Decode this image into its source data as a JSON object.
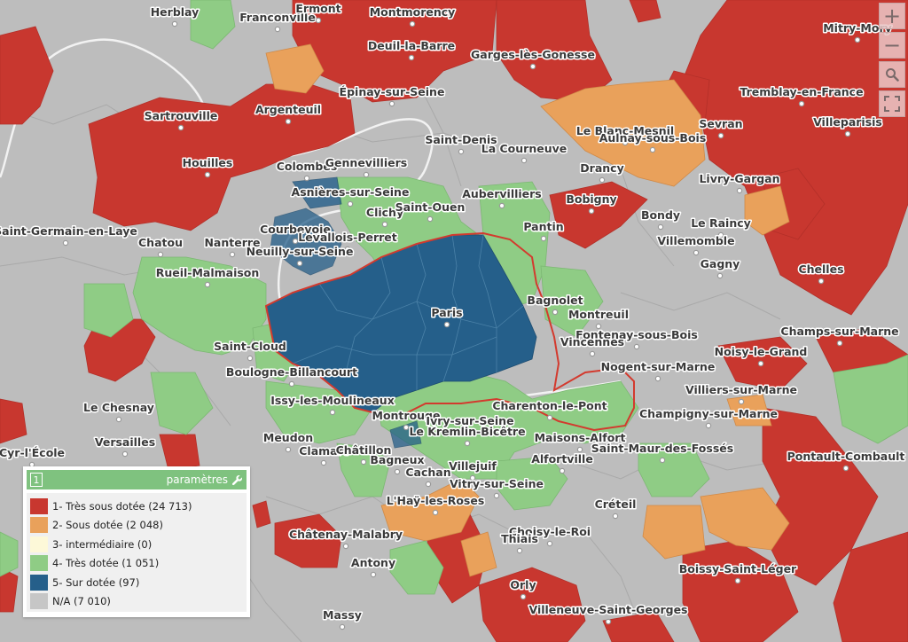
{
  "map": {
    "labels": [
      {
        "name": "Herblay"
      },
      {
        "name": "Franconville"
      },
      {
        "name": "Ermont"
      },
      {
        "name": "Montmorency"
      },
      {
        "name": "Mitry-Mory"
      },
      {
        "name": "Deuil-la-Barre"
      },
      {
        "name": "Garges-lès-Gonesse"
      },
      {
        "name": "Épinay-sur-Seine"
      },
      {
        "name": "Tremblay-en-France"
      },
      {
        "name": "Sartrouville"
      },
      {
        "name": "Argenteuil"
      },
      {
        "name": "Le Blanc-Mesnil"
      },
      {
        "name": "Aulnay-sous-Bois"
      },
      {
        "name": "Sevran"
      },
      {
        "name": "Villeparisis"
      },
      {
        "name": "Saint-Denis"
      },
      {
        "name": "La Courneuve"
      },
      {
        "name": "Houilles"
      },
      {
        "name": "Colombes"
      },
      {
        "name": "Gennevilliers"
      },
      {
        "name": "Drancy"
      },
      {
        "name": "Livry-Gargan"
      },
      {
        "name": "Asnières-sur-Seine"
      },
      {
        "name": "Aubervilliers"
      },
      {
        "name": "Bobigny"
      },
      {
        "name": "Clichy"
      },
      {
        "name": "Saint-Ouen"
      },
      {
        "name": "Bondy"
      },
      {
        "name": "Courbevoie"
      },
      {
        "name": "Saint-Germain-en-Laye"
      },
      {
        "name": "Levallois-Perret"
      },
      {
        "name": "Pantin"
      },
      {
        "name": "Le Raincy"
      },
      {
        "name": "Chatou"
      },
      {
        "name": "Nanterre"
      },
      {
        "name": "Villemomble"
      },
      {
        "name": "Neuilly-sur-Seine"
      },
      {
        "name": "Gagny"
      },
      {
        "name": "Rueil-Malmaison"
      },
      {
        "name": "Chelles"
      },
      {
        "name": "Bagnolet"
      },
      {
        "name": "Paris"
      },
      {
        "name": "Montreuil"
      },
      {
        "name": "Fontenay-sous-Bois"
      },
      {
        "name": "Champs-sur-Marne"
      },
      {
        "name": "Saint-Cloud"
      },
      {
        "name": "Vincennes"
      },
      {
        "name": "Noisy-le-Grand"
      },
      {
        "name": "Nogent-sur-Marne"
      },
      {
        "name": "Boulogne-Billancourt"
      },
      {
        "name": "Villiers-sur-Marne"
      },
      {
        "name": "Issy-les-Moulineaux"
      },
      {
        "name": "Charenton-le-Pont"
      },
      {
        "name": "Le Chesnay"
      },
      {
        "name": "Montrouge"
      },
      {
        "name": "Ivry-sur-Seine"
      },
      {
        "name": "Champigny-sur-Marne"
      },
      {
        "name": "Le Kremlin-Bicêtre"
      },
      {
        "name": "Maisons-Alfort"
      },
      {
        "name": "Versailles"
      },
      {
        "name": "Meudon"
      },
      {
        "name": "Saint-Maur-des-Fossés"
      },
      {
        "name": "Pontault-Combault"
      },
      {
        "name": "Clamart"
      },
      {
        "name": "Châtillon"
      },
      {
        "name": "Bagneux"
      },
      {
        "name": "Alfortville"
      },
      {
        "name": "Cyr-l'École"
      },
      {
        "name": "Villejuif"
      },
      {
        "name": "Cachan"
      },
      {
        "name": "Vitry-sur-Seine"
      },
      {
        "name": "L'Haÿ-les-Roses"
      },
      {
        "name": "Créteil"
      },
      {
        "name": "Châtenay-Malabry"
      },
      {
        "name": "Choisy-le-Roi"
      },
      {
        "name": "Thiais"
      },
      {
        "name": "Antony"
      },
      {
        "name": "Boissy-Saint-Léger"
      },
      {
        "name": "Orly"
      },
      {
        "name": "Villeneuve-Saint-Georges"
      },
      {
        "name": "Massy"
      }
    ]
  },
  "zoom": {
    "in_label": "+",
    "out_label": "−",
    "search_icon": "search-icon",
    "fullscreen_icon": "fullscreen-icon"
  },
  "legend": {
    "number": "1",
    "params_label": "paramètres",
    "params_icon": "wrench-icon",
    "items": [
      {
        "label": "1- Très sous dotée (24 713)",
        "color": "#c8372f"
      },
      {
        "label": "2- Sous dotée (2 048)",
        "color": "#e9a15b"
      },
      {
        "label": "3- intermédiaire (0)",
        "color": "#fdf8d8"
      },
      {
        "label": "4- Très dotée (1 051)",
        "color": "#8fcc85"
      },
      {
        "label": "5- Sur dotée (97)",
        "color": "#255f8a"
      },
      {
        "label": "N/A (7 010)",
        "color": "#c6c6c6"
      }
    ]
  },
  "colors": {
    "tres_sous_dotee": "#c8372f",
    "sous_dotee": "#e9a15b",
    "tres_dotee": "#8fcc85",
    "sur_dotee": "#255f8a",
    "na": "#bdbdbd",
    "paris_outline": "#d33a2e"
  }
}
